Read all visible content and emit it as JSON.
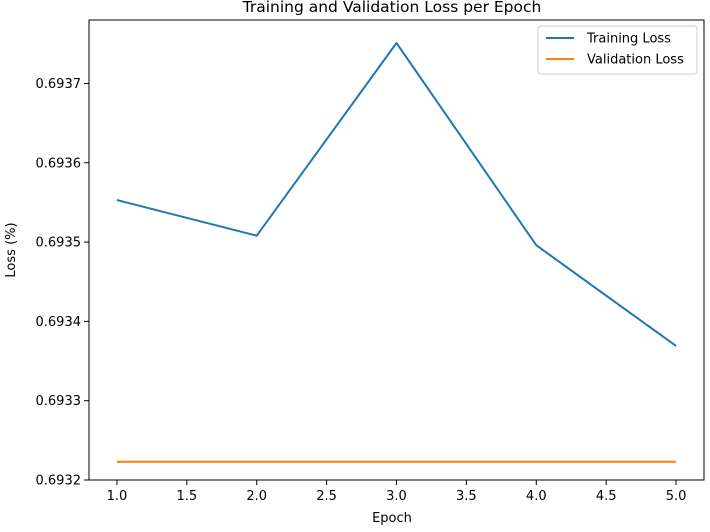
{
  "chart_data": {
    "type": "line",
    "title": "Training and Validation Loss per Epoch",
    "xlabel": "Epoch",
    "ylabel": "Loss (%)",
    "x": [
      1,
      2,
      3,
      4,
      5
    ],
    "xlim": [
      0.8,
      5.2
    ],
    "ylim": [
      0.6932,
      0.69378
    ],
    "xticks": [
      1.0,
      1.5,
      2.0,
      2.5,
      3.0,
      3.5,
      4.0,
      4.5,
      5.0
    ],
    "xtick_labels": [
      "1.0",
      "1.5",
      "2.0",
      "2.5",
      "3.0",
      "3.5",
      "4.0",
      "4.5",
      "5.0"
    ],
    "yticks": [
      0.6932,
      0.6933,
      0.6934,
      0.6935,
      0.6936,
      0.6937
    ],
    "ytick_labels": [
      "0.6932",
      "0.6933",
      "0.6934",
      "0.6935",
      "0.6936",
      "0.6937"
    ],
    "grid": false,
    "legend_position": "top-right",
    "series": [
      {
        "name": "Training Loss",
        "color": "#1f77b4",
        "values": [
          0.693553,
          0.693508,
          0.693751,
          0.693496,
          0.693369
        ]
      },
      {
        "name": "Validation Loss",
        "color": "#ff7f0e",
        "values": [
          0.693223,
          0.693223,
          0.693223,
          0.693223,
          0.693223
        ]
      }
    ]
  }
}
